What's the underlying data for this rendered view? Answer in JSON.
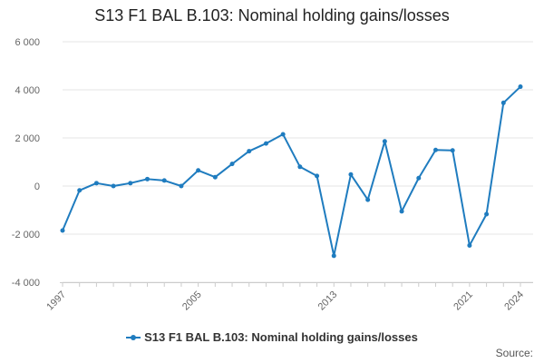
{
  "title": "S13 F1 BAL B.103: Nominal holding gains/losses",
  "source_label": "Source:",
  "colors": {
    "series": "#1f7cbf",
    "grid": "#e6e6e6",
    "axis_text": "#666666"
  },
  "chart_data": {
    "type": "line",
    "title": "S13 F1 BAL B.103: Nominal holding gains/losses",
    "xlabel": "",
    "ylabel": "",
    "x_tick_labels": [
      "1997",
      "2005",
      "2013",
      "2021",
      "2024"
    ],
    "y_tick_labels": [
      "6 000",
      "4 000",
      "2 000",
      "0",
      "-2 000",
      "-4 000"
    ],
    "ylim": [
      -4000,
      6000
    ],
    "xlim": [
      1997,
      2024
    ],
    "grid": true,
    "legend_position": "bottom",
    "series": [
      {
        "name": "S13 F1 BAL B.103: Nominal holding gains/losses",
        "x": [
          1997,
          1998,
          1999,
          2000,
          2001,
          2002,
          2003,
          2004,
          2005,
          2006,
          2007,
          2008,
          2009,
          2010,
          2011,
          2012,
          2013,
          2014,
          2015,
          2016,
          2017,
          2018,
          2019,
          2020,
          2021,
          2022,
          2023,
          2024
        ],
        "values": [
          -1850,
          -180,
          120,
          0,
          120,
          290,
          230,
          0,
          650,
          370,
          920,
          1450,
          1770,
          2150,
          800,
          420,
          -2900,
          480,
          -570,
          1860,
          -1050,
          330,
          1500,
          1480,
          -2470,
          -1170,
          3460,
          4130
        ]
      }
    ]
  }
}
